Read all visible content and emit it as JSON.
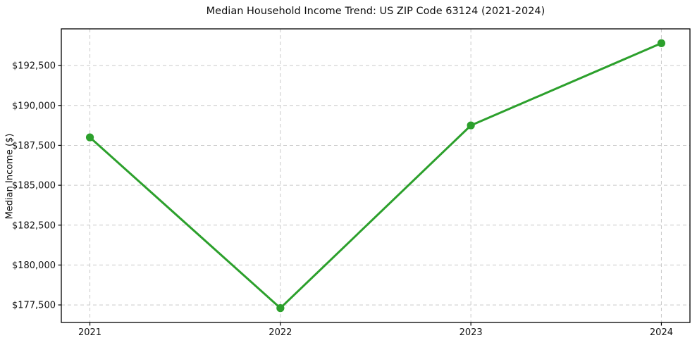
{
  "chart_data": {
    "type": "line",
    "title": "Median Household Income Trend: US ZIP Code 63124 (2021-2024)",
    "xlabel": "",
    "ylabel": "Median Income ($)",
    "x": [
      2021,
      2022,
      2023,
      2024
    ],
    "xtick_labels": [
      "2021",
      "2022",
      "2023",
      "2024"
    ],
    "values": [
      188000,
      177300,
      188750,
      193900
    ],
    "yticks": [
      177500,
      180000,
      182500,
      185000,
      187500,
      190000,
      192500
    ],
    "ytick_labels": [
      "$177,500",
      "$180,000",
      "$182,500",
      "$185,000",
      "$187,500",
      "$190,000",
      "$192,500"
    ],
    "xlim": [
      2020.85,
      2024.15
    ],
    "ylim": [
      176400,
      194800
    ],
    "grid": true,
    "legend": false,
    "line_color": "#2ca02c",
    "marker_color": "#2ca02c",
    "grid_color": "#c9c9c9",
    "spine_color": "#000000",
    "text_color": "#111111",
    "background_color": "#ffffff"
  }
}
